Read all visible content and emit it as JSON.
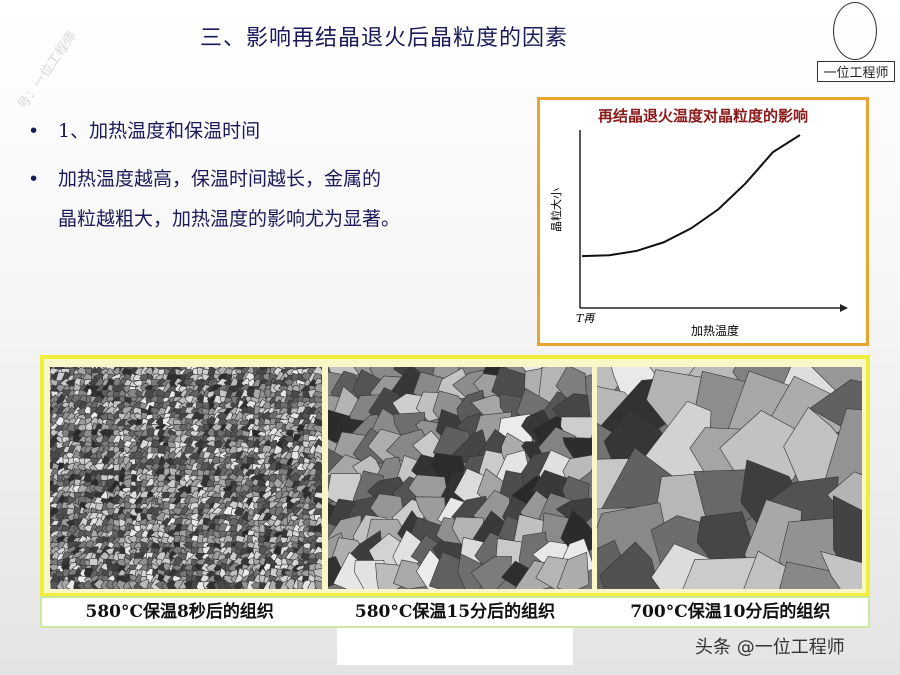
{
  "title": "三、影响再结晶退火后晶粒度的因素",
  "watermark": "号：一位工程师",
  "logo": {
    "label": "一位工程师"
  },
  "bullets": [
    {
      "marker": "•",
      "text": "1、加热温度和保温时间"
    },
    {
      "marker": "•",
      "text": "加热温度越高，保温时间越长，金属的"
    },
    {
      "marker": "",
      "text": "晶粒越粗大，加热温度的影响尤为显著。"
    }
  ],
  "chart_data": {
    "type": "line",
    "title": "再结晶退火温度对晶粒度的影响",
    "xlabel": "加热温度",
    "ylabel": "晶粒大小",
    "x_tick_labels": [
      "T再"
    ],
    "series": [
      {
        "x": [
          0,
          1,
          2,
          3,
          4,
          5,
          6,
          7,
          8
        ],
        "y": [
          3,
          3.05,
          3.3,
          3.8,
          4.6,
          5.7,
          7.2,
          9,
          10
        ]
      }
    ],
    "grid": false
  },
  "micrographs": [
    {
      "caption": "580°C保温8秒后的组织",
      "grain": "fine"
    },
    {
      "caption": "580°C保温15分后的组织",
      "grain": "medium"
    },
    {
      "caption": "700°C保温10分后的组织",
      "grain": "coarse"
    }
  ],
  "footer": "头条 @一位工程师",
  "colors": {
    "title": "#1a1a5a",
    "chart_border": "#e9a430",
    "chart_title": "#8b1a1a",
    "panel_border": "#f0ee3a"
  }
}
